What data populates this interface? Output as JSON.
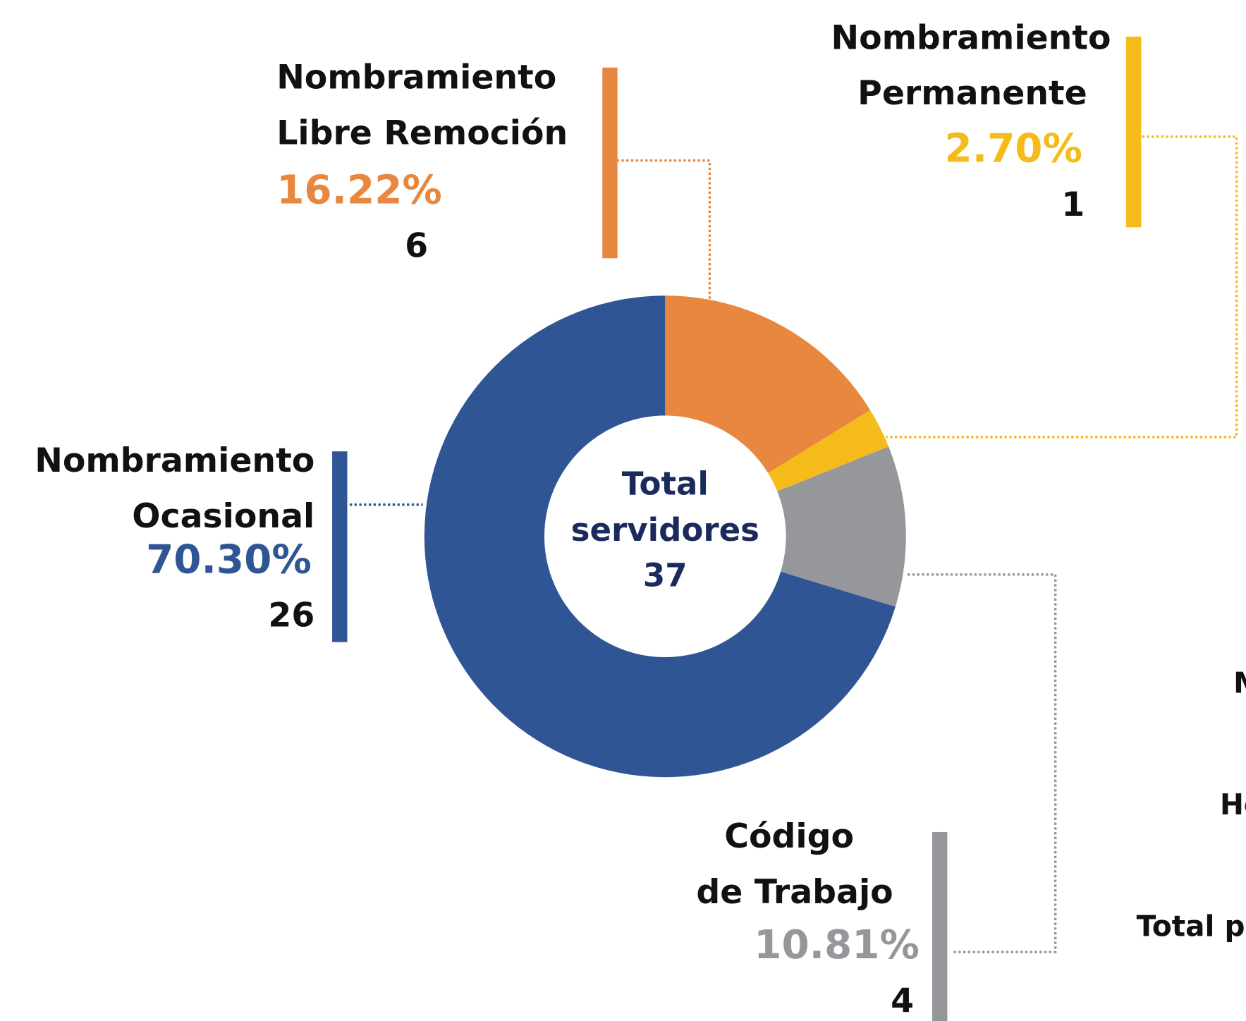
{
  "chart_data": {
    "type": "donut",
    "categories": [
      "Nombramiento Libre Remoción",
      "Nombramiento Permanente",
      "Código de Trabajo",
      "Nombramiento Ocasional"
    ],
    "values": [
      16.22,
      2.7,
      10.81,
      70.3
    ],
    "value_labels": [
      "16.22%",
      "2.70%",
      "10.81%",
      "70.30%"
    ],
    "counts": [
      6,
      1,
      4,
      26
    ],
    "colors": [
      "#e8873f",
      "#f5bb1a",
      "#96979b",
      "#305595"
    ],
    "center_label": "Total servidores",
    "total": 37,
    "side_labels": [
      "M",
      "Ho",
      "Total p"
    ]
  }
}
